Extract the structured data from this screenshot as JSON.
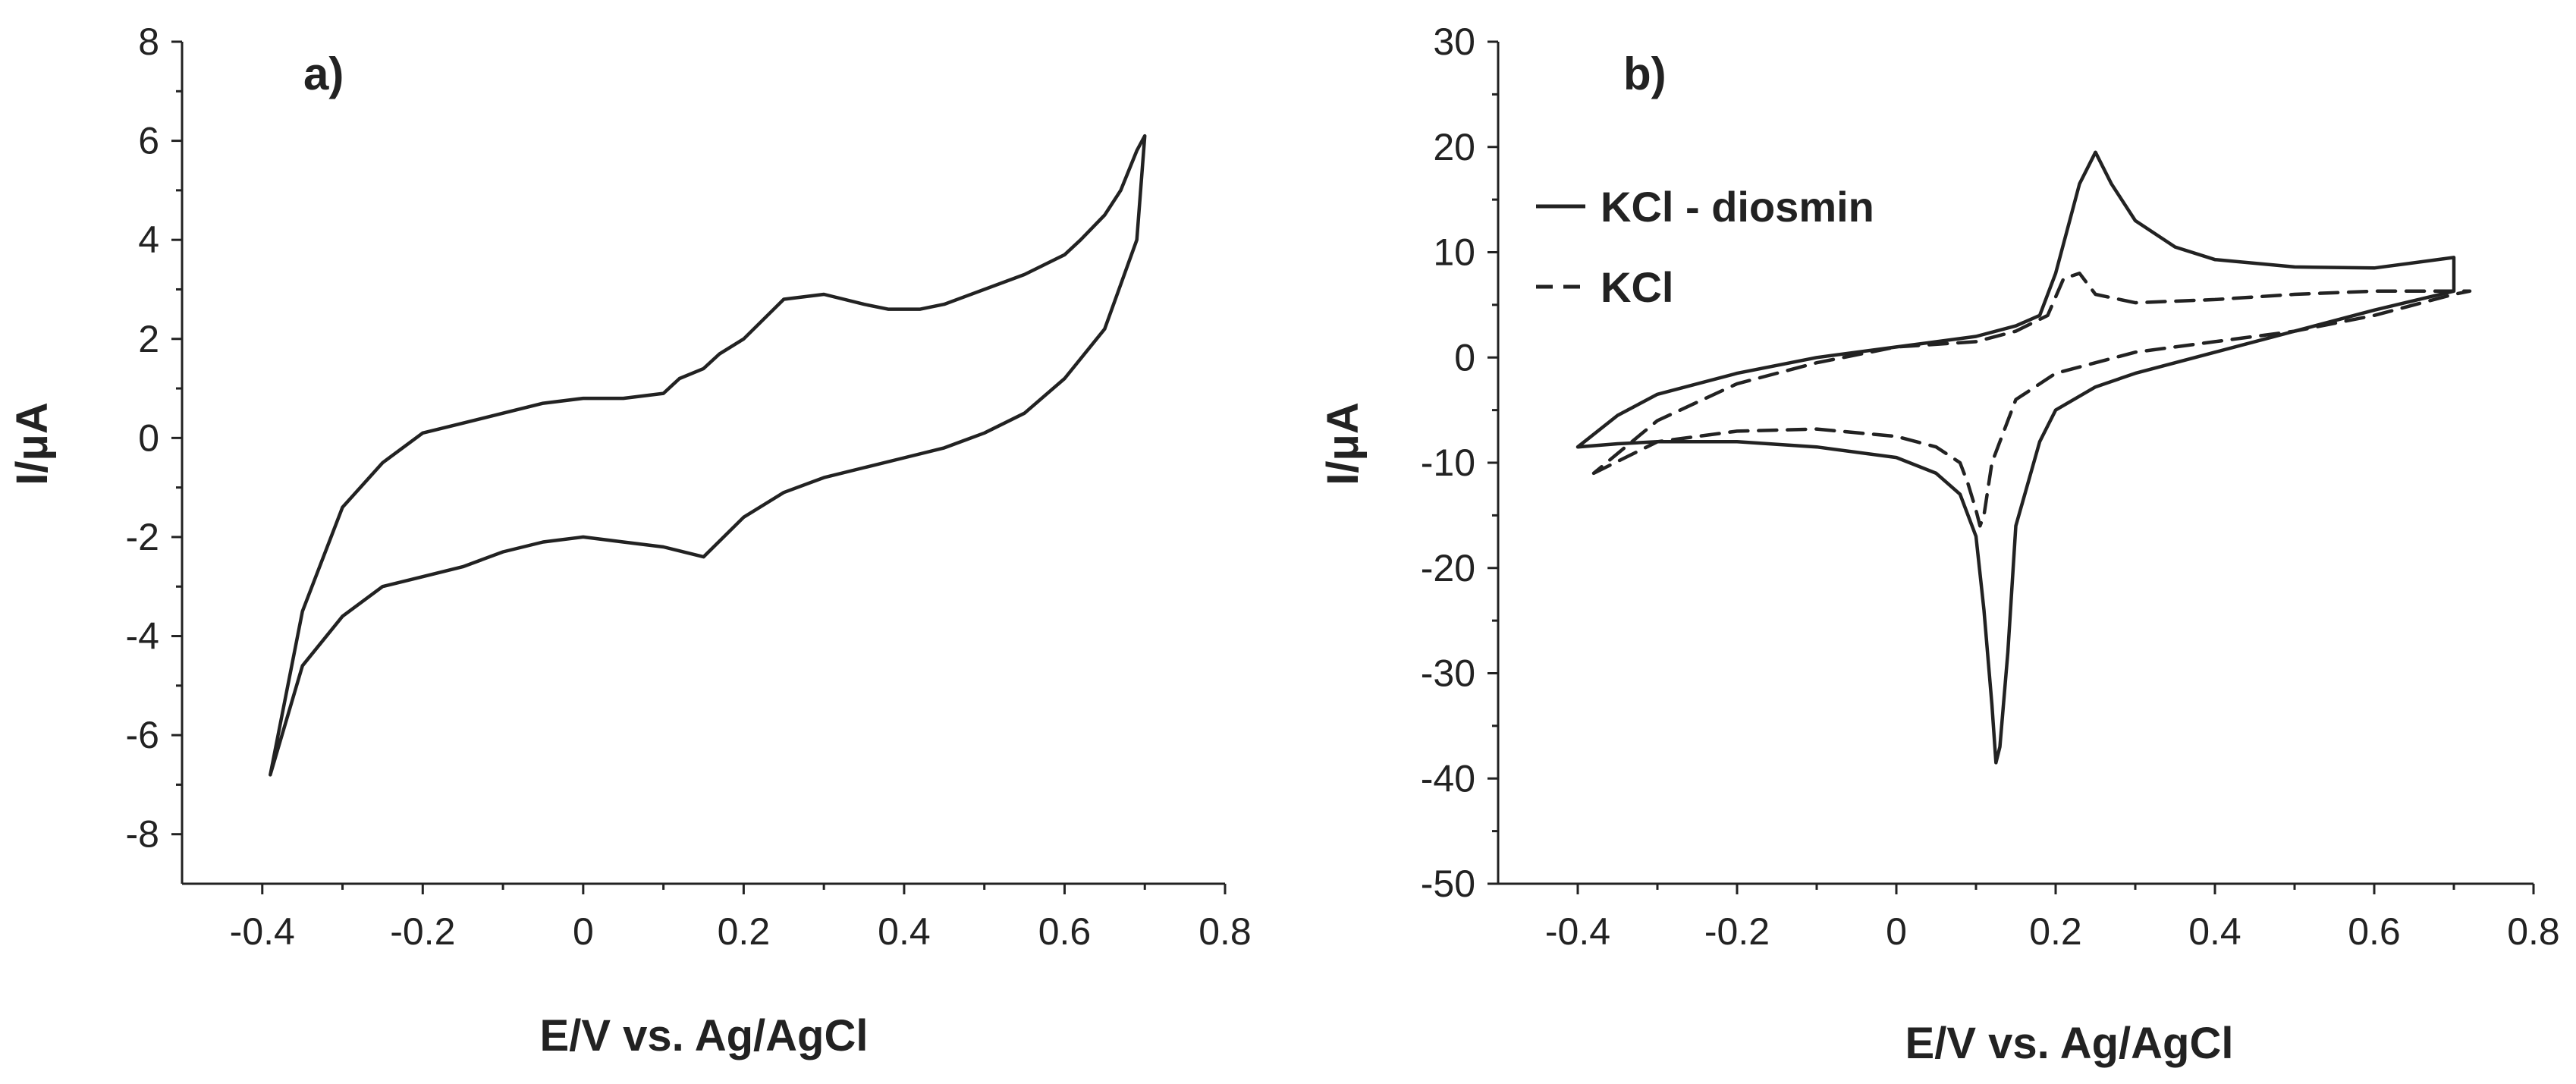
{
  "chart_data": [
    {
      "panel": "a)",
      "type": "line",
      "xlabel": "E/V vs. Ag/AgCl",
      "ylabel": "I/μA",
      "xlim": [
        -0.5,
        0.8
      ],
      "ylim": [
        -9,
        8
      ],
      "xticks": [
        -0.4,
        -0.2,
        0,
        0.2,
        0.4,
        0.6,
        0.8
      ],
      "xtick_labels": [
        "-0.4",
        "-0.2",
        "0",
        "0.2",
        "0.4",
        "0.6",
        "0.8"
      ],
      "yticks": [
        -8,
        -6,
        -4,
        -2,
        0,
        2,
        4,
        6,
        8
      ],
      "ytick_labels": [
        "-8",
        "-6",
        "-4",
        "-2",
        "0",
        "2",
        "4",
        "6",
        "8"
      ],
      "grid": false,
      "series": [
        {
          "style": "solid",
          "color": "#222222",
          "x": [
            -0.39,
            -0.35,
            -0.3,
            -0.25,
            -0.2,
            -0.15,
            -0.1,
            -0.05,
            0.0,
            0.05,
            0.1,
            0.15,
            0.2,
            0.25,
            0.3,
            0.35,
            0.4,
            0.45,
            0.5,
            0.55,
            0.6,
            0.65,
            0.69,
            0.7,
            0.7,
            0.69,
            0.67,
            0.65,
            0.62,
            0.6,
            0.55,
            0.5,
            0.45,
            0.42,
            0.38,
            0.35,
            0.3,
            0.25,
            0.2,
            0.17,
            0.15,
            0.12,
            0.1,
            0.05,
            0.0,
            -0.05,
            -0.1,
            -0.15,
            -0.2,
            -0.25,
            -0.3,
            -0.35,
            -0.39
          ],
          "y": [
            -6.8,
            -4.6,
            -3.6,
            -3.0,
            -2.8,
            -2.6,
            -2.3,
            -2.1,
            -2.0,
            -2.1,
            -2.2,
            -2.4,
            -1.6,
            -1.1,
            -0.8,
            -0.6,
            -0.4,
            -0.2,
            0.1,
            0.5,
            1.2,
            2.2,
            4.0,
            6.1,
            6.1,
            5.8,
            5.0,
            4.5,
            4.0,
            3.7,
            3.3,
            3.0,
            2.7,
            2.6,
            2.6,
            2.7,
            2.9,
            2.8,
            2.0,
            1.7,
            1.4,
            1.2,
            0.9,
            0.8,
            0.8,
            0.7,
            0.5,
            0.3,
            0.1,
            -0.5,
            -1.4,
            -3.5,
            -6.8
          ]
        }
      ]
    },
    {
      "panel": "b)",
      "type": "line",
      "xlabel": "E/V vs. Ag/AgCl",
      "ylabel": "I/μA",
      "xlim": [
        -0.5,
        0.8
      ],
      "ylim": [
        -50,
        30
      ],
      "xticks": [
        -0.4,
        -0.2,
        0,
        0.2,
        0.4,
        0.6,
        0.8
      ],
      "xtick_labels": [
        "-0.4",
        "-0.2",
        "0",
        "0.2",
        "0.4",
        "0.6",
        "0.8"
      ],
      "yticks": [
        -50,
        -40,
        -30,
        -20,
        -10,
        0,
        10,
        20,
        30
      ],
      "ytick_labels": [
        "-50",
        "-40",
        "-30",
        "-20",
        "-10",
        "0",
        "10",
        "20",
        "30"
      ],
      "grid": false,
      "legend_position": "top-left",
      "series": [
        {
          "name": "KCl - diosmin",
          "style": "solid",
          "color": "#222222",
          "x": [
            -0.4,
            -0.35,
            -0.3,
            -0.2,
            -0.1,
            0.0,
            0.05,
            0.08,
            0.1,
            0.11,
            0.12,
            0.125,
            0.13,
            0.14,
            0.15,
            0.18,
            0.2,
            0.25,
            0.3,
            0.4,
            0.5,
            0.6,
            0.7,
            0.7,
            0.6,
            0.5,
            0.4,
            0.35,
            0.3,
            0.27,
            0.25,
            0.23,
            0.2,
            0.18,
            0.15,
            0.1,
            0.0,
            -0.1,
            -0.2,
            -0.3,
            -0.35,
            -0.4
          ],
          "y": [
            -8.5,
            -8.2,
            -8.0,
            -8.0,
            -8.5,
            -9.5,
            -11.0,
            -13.0,
            -17.0,
            -24.0,
            -33.0,
            -38.5,
            -37.0,
            -28.0,
            -16.0,
            -8.0,
            -5.0,
            -2.8,
            -1.5,
            0.5,
            2.5,
            4.5,
            6.3,
            9.5,
            8.5,
            8.6,
            9.3,
            10.5,
            13.0,
            16.5,
            19.5,
            16.5,
            8.0,
            4.0,
            3.0,
            2.0,
            1.0,
            0.0,
            -1.5,
            -3.5,
            -5.5,
            -8.5
          ]
        },
        {
          "name": "KCl",
          "style": "dashed",
          "color": "#222222",
          "x": [
            -0.38,
            -0.3,
            -0.2,
            -0.1,
            0.0,
            0.05,
            0.08,
            0.09,
            0.1,
            0.105,
            0.11,
            0.12,
            0.15,
            0.2,
            0.3,
            0.4,
            0.5,
            0.6,
            0.7,
            0.72,
            0.6,
            0.5,
            0.4,
            0.3,
            0.25,
            0.23,
            0.21,
            0.19,
            0.15,
            0.1,
            0.0,
            -0.1,
            -0.2,
            -0.3,
            -0.38
          ],
          "y": [
            -11.0,
            -8.0,
            -7.0,
            -6.8,
            -7.5,
            -8.5,
            -10.0,
            -12.0,
            -14.5,
            -16.0,
            -15.0,
            -10.0,
            -4.0,
            -1.5,
            0.5,
            1.5,
            2.5,
            4.0,
            6.0,
            6.3,
            6.3,
            6.0,
            5.5,
            5.2,
            6.0,
            8.0,
            7.5,
            4.0,
            2.5,
            1.5,
            1.0,
            -0.5,
            -2.5,
            -6.0,
            -11.0
          ]
        }
      ]
    }
  ]
}
